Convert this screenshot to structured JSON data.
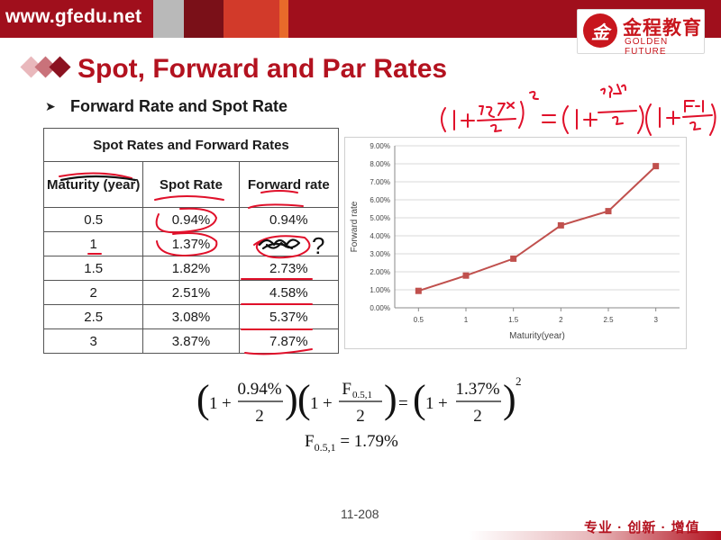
{
  "header": {
    "site_url": "www.gfedu.net",
    "logo_mark": "金",
    "logo_name_cn": "金程教育",
    "logo_name_en": "GOLDEN FUTURE"
  },
  "slide": {
    "title": "Spot, Forward and Par Rates",
    "bullet": "Forward Rate and Spot Rate",
    "page_number": "11-208",
    "footer_slogan": "专业 · 创新 · 增值"
  },
  "table": {
    "caption": "Spot Rates and Forward Rates",
    "headers": [
      "Maturity (year)",
      "Spot Rate",
      "Forward rate"
    ],
    "rows": [
      [
        "0.5",
        "0.94%",
        "0.94%"
      ],
      [
        "1",
        "1.37%",
        ""
      ],
      [
        "1.5",
        "1.82%",
        "2.73%"
      ],
      [
        "2",
        "2.51%",
        "4.58%"
      ],
      [
        "2.5",
        "3.08%",
        "5.37%"
      ],
      [
        "3",
        "3.87%",
        "7.87%"
      ]
    ]
  },
  "chart_data": {
    "type": "line",
    "categories": [
      "0.5",
      "1",
      "1.5",
      "2",
      "2.5",
      "3"
    ],
    "series": [
      {
        "values": [
          0.94,
          1.79,
          2.73,
          4.58,
          5.37,
          7.87
        ],
        "color": "#c0504d"
      }
    ],
    "xlabel": "Maturity(year)",
    "ylabel": "Forward rate",
    "ylim": [
      0,
      9
    ],
    "yticks": [
      "0.00%",
      "1.00%",
      "2.00%",
      "3.00%",
      "4.00%",
      "5.00%",
      "6.00%",
      "7.00%",
      "8.00%",
      "9.00%"
    ],
    "grid": true,
    "legend": "none"
  },
  "formula": {
    "spot_05": "0.94%",
    "spot_1": "1.37%",
    "forward_symbol": "F",
    "forward_subscript": "0.5,1",
    "one": "1",
    "denominator": "2",
    "exponent": "2",
    "result_value": "1.79%"
  },
  "handwriting": {
    "question_mark": "?"
  },
  "colors": {
    "brand_red": "#a00f1c",
    "title_red": "#b3121f",
    "ink_red": "#e0102a",
    "series_red": "#c0504d"
  }
}
